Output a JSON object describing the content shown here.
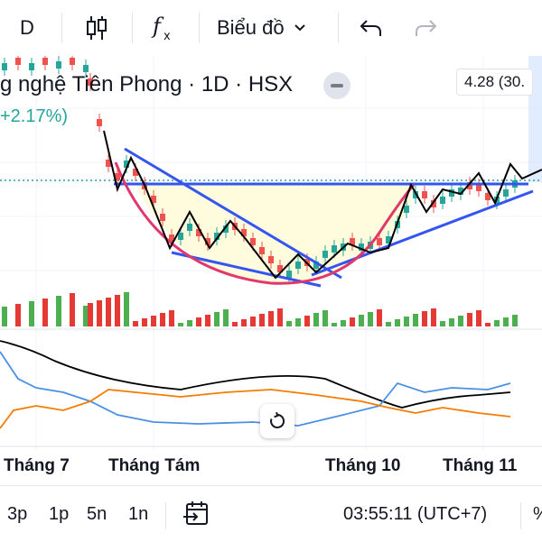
{
  "toolbar": {
    "interval": "D",
    "indicator_icon": "candles-icon",
    "function_icon": "fx-icon",
    "chart_type_label": "Biểu đồ",
    "undo_icon": "undo-icon",
    "redo_icon": "redo-icon"
  },
  "legend": {
    "title": "g nghệ Tiên Phong · 1D · HSX",
    "change": "+2.17%)"
  },
  "price_tag": "4.28 (30.",
  "months": [
    "Tháng 7",
    "Tháng Tám",
    "Tháng 10",
    "Tháng 11"
  ],
  "bottom_bar": {
    "ranges": [
      "3p",
      "1p",
      "5n",
      "1n"
    ],
    "goto_icon": "goto-date-icon",
    "time": "03:55:11 (UTC+7)",
    "percent": "%"
  },
  "colors": {
    "up": "#26a69a",
    "down": "#ef5350",
    "vol_up": "#4caf50",
    "vol_down": "#e53935",
    "trendline": "#3356f0",
    "cup": "#e0386a",
    "pattern_fill": "#fffbdd",
    "ma_black": "#000000",
    "ma_blue": "#4a90e2",
    "ma_orange": "#f57c00"
  }
}
